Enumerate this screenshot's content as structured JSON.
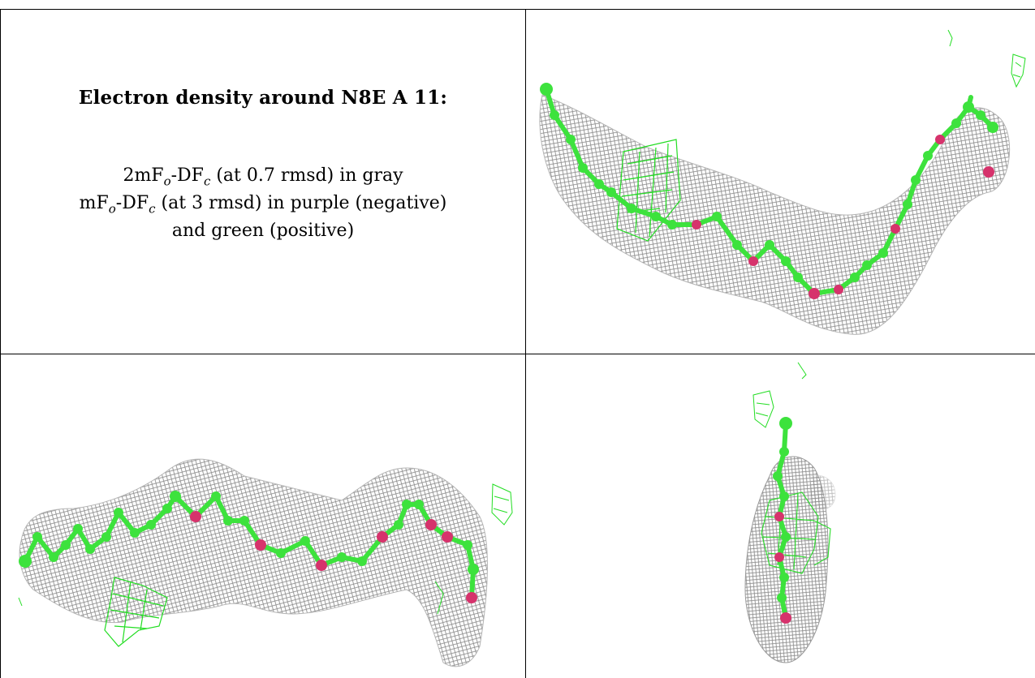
{
  "title": "Electron density around N8E A 11:",
  "legend": {
    "line1": {
      "pre": "2mF",
      "sub1": "o",
      "mid": "-DF",
      "sub2": "c",
      "post": " (at 0.7 rmsd) in gray"
    },
    "line2": {
      "pre": "mF",
      "sub1": "o",
      "mid": "-DF",
      "sub2": "c",
      "post": " (at 3 rmsd) in purple (negative)"
    },
    "line3": "and green (positive)"
  },
  "colors": {
    "mesh_gray": "#8a8a8a",
    "atom_green": "#3de23d",
    "atom_pink": "#d6336c",
    "density_green": "#22dd22"
  },
  "panels": [
    {
      "name": "density-view-top-right"
    },
    {
      "name": "density-view-bottom-left"
    },
    {
      "name": "density-view-bottom-right"
    }
  ]
}
